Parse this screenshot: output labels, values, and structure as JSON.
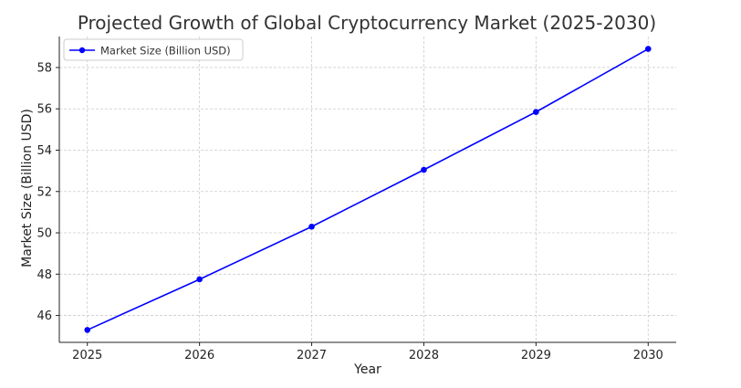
{
  "chart_data": {
    "type": "line",
    "title": "Projected Growth of Global Cryptocurrency Market (2025-2030)",
    "xlabel": "Year",
    "ylabel": "Market Size (Billion USD)",
    "x": [
      2025,
      2026,
      2027,
      2028,
      2029,
      2030
    ],
    "xticks": [
      "2025",
      "2026",
      "2027",
      "2028",
      "2029",
      "2030"
    ],
    "yticks": [
      46,
      48,
      50,
      52,
      54,
      56,
      58
    ],
    "xlim": [
      2024.75,
      2030.25
    ],
    "ylim": [
      44.7,
      59.5
    ],
    "grid": true,
    "legend_position": "upper-left",
    "series": [
      {
        "name": "Market Size (Billion USD)",
        "color": "#0000ff",
        "marker": "circle",
        "values": [
          45.3,
          47.75,
          50.3,
          53.05,
          55.85,
          58.9
        ]
      }
    ]
  }
}
